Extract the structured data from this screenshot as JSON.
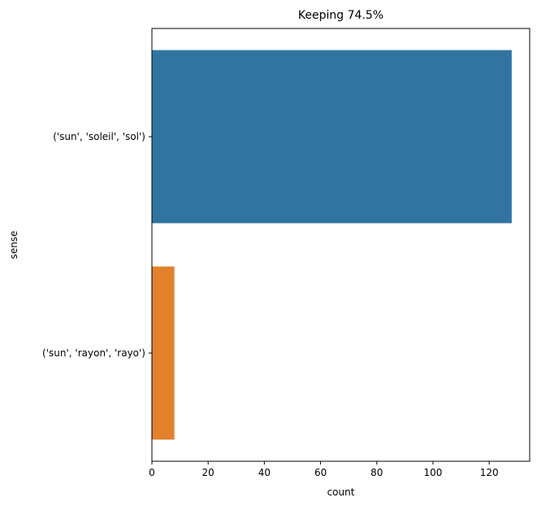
{
  "chart_data": {
    "type": "bar",
    "orientation": "horizontal",
    "title": "Keeping 74.5%",
    "xlabel": "count",
    "ylabel": "sense",
    "categories": [
      "('sun', 'soleil', 'sol')",
      "('sun', 'rayon', 'rayo')"
    ],
    "values": [
      128,
      8
    ],
    "colors": [
      "#3274a1",
      "#e1812c"
    ],
    "xlim": [
      0,
      134.4
    ],
    "xticks": [
      0,
      20,
      40,
      60,
      80,
      100,
      120
    ],
    "grid": false,
    "legend": "none"
  }
}
